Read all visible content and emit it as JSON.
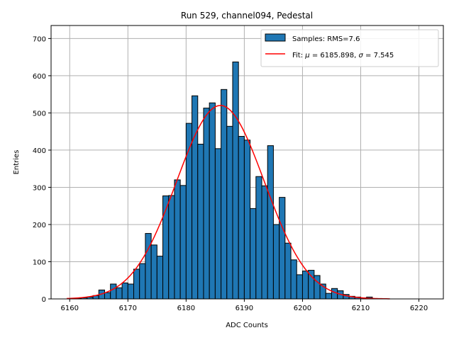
{
  "chart_data": {
    "type": "bar",
    "title": "Run 529, channel094, Pedestal",
    "xlabel": "ADC Counts",
    "ylabel": "Entries",
    "xlim": [
      6156.8,
      6224.2
    ],
    "ylim": [
      0,
      735
    ],
    "xticks": [
      6160,
      6170,
      6180,
      6190,
      6200,
      6210,
      6220
    ],
    "yticks": [
      0,
      100,
      200,
      300,
      400,
      500,
      600,
      700
    ],
    "grid": true,
    "legend_position": "top-right",
    "bin_width": 1,
    "bar_color": "#1f77b4",
    "bar_edge_color": "#000000",
    "fit_color": "#ff0000",
    "histogram": {
      "name": "Samples: RMS=7.6",
      "bin_starts": [
        6160,
        6161,
        6162,
        6163,
        6164,
        6165,
        6166,
        6167,
        6168,
        6169,
        6170,
        6171,
        6172,
        6173,
        6174,
        6175,
        6176,
        6177,
        6178,
        6179,
        6180,
        6181,
        6182,
        6183,
        6184,
        6185,
        6186,
        6187,
        6188,
        6189,
        6190,
        6191,
        6192,
        6193,
        6194,
        6195,
        6196,
        6197,
        6198,
        6199,
        6200,
        6201,
        6202,
        6203,
        6204,
        6205,
        6206,
        6207,
        6208,
        6209,
        6210,
        6211,
        6212
      ],
      "values": [
        1,
        1,
        3,
        5,
        9,
        24,
        17,
        40,
        30,
        43,
        40,
        80,
        95,
        176,
        145,
        115,
        277,
        278,
        320,
        305,
        472,
        546,
        416,
        513,
        527,
        404,
        563,
        464,
        637,
        437,
        427,
        243,
        329,
        304,
        412,
        200,
        273,
        150,
        105,
        65,
        75,
        77,
        63,
        40,
        15,
        28,
        22,
        12,
        7,
        5,
        3,
        5,
        1
      ]
    },
    "fit": {
      "name": "Fit: μ = 6185.898, σ = 7.545",
      "label_prefix": "Fit: ",
      "mu_symbol": "μ",
      "sigma_symbol": "σ",
      "mu_value": "6185.898",
      "sigma_value": "7.545",
      "mu": 6185.898,
      "sigma": 7.545,
      "amplitude": 520,
      "x_range": [
        6159.5,
        6215
      ]
    }
  }
}
